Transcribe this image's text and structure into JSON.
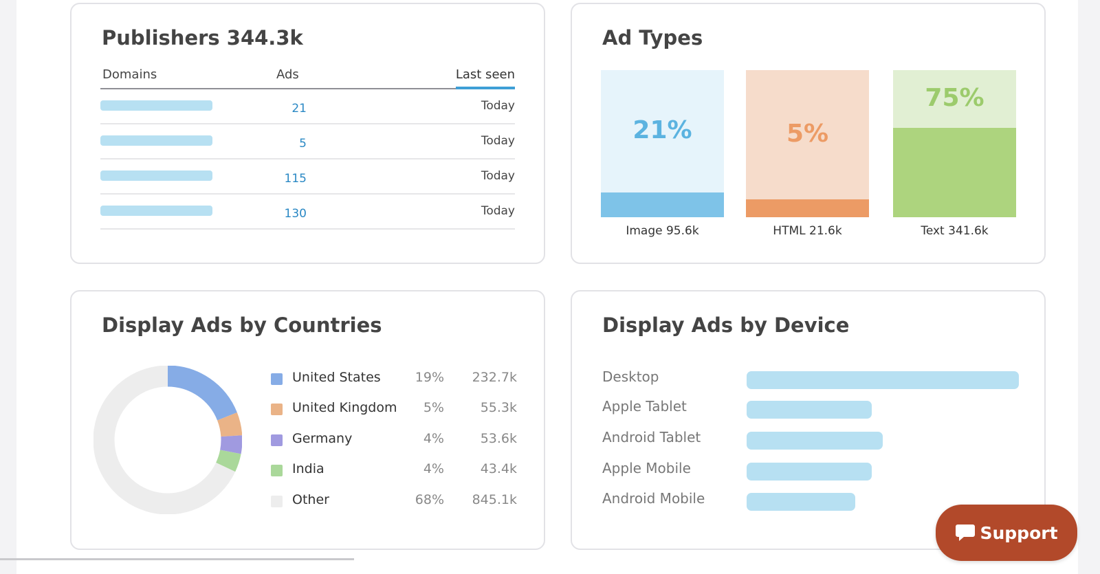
{
  "publishers": {
    "title": "Publishers 344.3k",
    "headers": {
      "domains": "Domains",
      "ads": "Ads",
      "last_seen": "Last seen"
    },
    "rows": [
      {
        "ads": "21",
        "last_seen": "Today"
      },
      {
        "ads": "5",
        "last_seen": "Today"
      },
      {
        "ads": "115",
        "last_seen": "Today"
      },
      {
        "ads": "130",
        "last_seen": "Today"
      }
    ]
  },
  "ad_types": {
    "title": "Ad Types",
    "items": [
      {
        "percent_label": "21%",
        "label": "Image 95.6k",
        "share": 0.21,
        "color": "#7ec3e8",
        "bg": "#e6f4fb",
        "text_color": "#5bb3e0"
      },
      {
        "percent_label": "5%",
        "label": "HTML 21.6k",
        "share": 0.05,
        "color": "#ec9b65",
        "bg": "#f6dccb",
        "text_color": "#ec9b65"
      },
      {
        "percent_label": "75%",
        "label": "Text 341.6k",
        "share": 0.75,
        "color": "#add47e",
        "bg": "#e1efd3",
        "text_color": "#9ccb6c"
      }
    ]
  },
  "countries": {
    "title": "Display Ads by Countries",
    "items": [
      {
        "name": "United States",
        "percent": "19%",
        "value": "232.7k",
        "share": 19,
        "color": "#86ace6"
      },
      {
        "name": "United Kingdom",
        "percent": "5%",
        "value": "55.3k",
        "share": 5,
        "color": "#eab387"
      },
      {
        "name": "Germany",
        "percent": "4%",
        "value": "53.6k",
        "share": 4,
        "color": "#a09ae0"
      },
      {
        "name": "India",
        "percent": "4%",
        "value": "43.4k",
        "share": 4,
        "color": "#aad89a"
      },
      {
        "name": "Other",
        "percent": "68%",
        "value": "845.1k",
        "share": 68,
        "color": "#ededed"
      }
    ]
  },
  "device": {
    "title": "Display Ads by Device",
    "items": [
      {
        "label": "Desktop",
        "level": 1.0
      },
      {
        "label": "Apple Tablet",
        "level": 0.46
      },
      {
        "label": "Android Tablet",
        "level": 0.5
      },
      {
        "label": "Apple Mobile",
        "level": 0.46
      },
      {
        "label": "Android Mobile",
        "level": 0.4
      }
    ]
  },
  "support": {
    "label": "Support",
    "icon": "chat-bubble-icon",
    "color": "#b2492a"
  }
}
